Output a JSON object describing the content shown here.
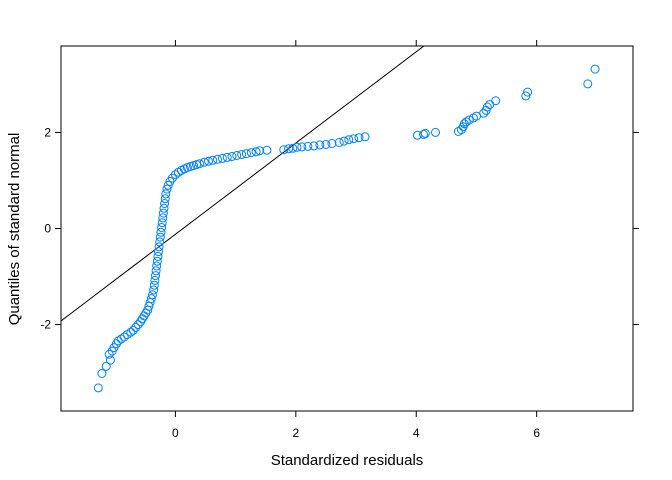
{
  "chart_data": {
    "type": "scatter",
    "title": "",
    "xlabel": "Standardized residuals",
    "ylabel": "Quantiles of standard normal",
    "xlim": [
      -1.9,
      7.6
    ],
    "ylim": [
      -3.8,
      3.8
    ],
    "x_ticks": [
      0,
      2,
      4,
      6
    ],
    "y_ticks": [
      -2,
      0,
      2
    ],
    "grid": false,
    "marker_color": "#0080ff",
    "line_color": "#000000",
    "reference_line": {
      "intercept": -0.12,
      "slope": 0.95
    },
    "series": [
      {
        "points": [
          [
            -1.28,
            -3.32
          ],
          [
            -1.22,
            -3.02
          ],
          [
            -1.15,
            -2.87
          ],
          [
            -1.08,
            -2.74
          ],
          [
            -1.1,
            -2.62
          ],
          [
            -1.05,
            -2.55
          ],
          [
            -1.02,
            -2.48
          ],
          [
            -0.98,
            -2.4
          ],
          [
            -0.95,
            -2.34
          ],
          [
            -0.9,
            -2.3
          ],
          [
            -0.85,
            -2.26
          ],
          [
            -0.8,
            -2.21
          ],
          [
            -0.74,
            -2.16
          ],
          [
            -0.7,
            -2.12
          ],
          [
            -0.66,
            -2.06
          ],
          [
            -0.62,
            -2.0
          ],
          [
            -0.58,
            -1.94
          ],
          [
            -0.55,
            -1.88
          ],
          [
            -0.52,
            -1.82
          ],
          [
            -0.49,
            -1.76
          ],
          [
            -0.46,
            -1.7
          ],
          [
            -0.44,
            -1.62
          ],
          [
            -0.42,
            -1.54
          ],
          [
            -0.4,
            -1.46
          ],
          [
            -0.38,
            -1.38
          ],
          [
            -0.36,
            -1.28
          ],
          [
            -0.35,
            -1.18
          ],
          [
            -0.34,
            -1.08
          ],
          [
            -0.33,
            -0.98
          ],
          [
            -0.32,
            -0.88
          ],
          [
            -0.31,
            -0.78
          ],
          [
            -0.3,
            -0.68
          ],
          [
            -0.29,
            -0.58
          ],
          [
            -0.28,
            -0.48
          ],
          [
            -0.27,
            -0.38
          ],
          [
            -0.26,
            -0.28
          ],
          [
            -0.25,
            -0.18
          ],
          [
            -0.24,
            -0.08
          ],
          [
            -0.23,
            0.02
          ],
          [
            -0.22,
            0.12
          ],
          [
            -0.21,
            0.22
          ],
          [
            -0.2,
            0.32
          ],
          [
            -0.19,
            0.42
          ],
          [
            -0.18,
            0.52
          ],
          [
            -0.17,
            0.62
          ],
          [
            -0.16,
            0.72
          ],
          [
            -0.14,
            0.82
          ],
          [
            -0.12,
            0.9
          ],
          [
            -0.09,
            0.98
          ],
          [
            -0.05,
            1.05
          ],
          [
            0.0,
            1.12
          ],
          [
            0.05,
            1.17
          ],
          [
            0.1,
            1.21
          ],
          [
            0.15,
            1.24
          ],
          [
            0.2,
            1.27
          ],
          [
            0.25,
            1.29
          ],
          [
            0.3,
            1.31
          ],
          [
            0.35,
            1.33
          ],
          [
            0.4,
            1.35
          ],
          [
            0.48,
            1.38
          ],
          [
            0.55,
            1.4
          ],
          [
            0.62,
            1.42
          ],
          [
            0.7,
            1.44
          ],
          [
            0.78,
            1.46
          ],
          [
            0.86,
            1.48
          ],
          [
            0.94,
            1.5
          ],
          [
            1.02,
            1.52
          ],
          [
            1.1,
            1.54
          ],
          [
            1.18,
            1.56
          ],
          [
            1.26,
            1.58
          ],
          [
            1.34,
            1.6
          ],
          [
            1.4,
            1.62
          ],
          [
            1.52,
            1.63
          ],
          [
            1.8,
            1.64
          ],
          [
            1.88,
            1.66
          ],
          [
            1.95,
            1.67
          ],
          [
            2.02,
            1.69
          ],
          [
            2.1,
            1.7
          ],
          [
            2.2,
            1.71
          ],
          [
            2.3,
            1.72
          ],
          [
            2.4,
            1.74
          ],
          [
            2.5,
            1.75
          ],
          [
            2.6,
            1.77
          ],
          [
            2.72,
            1.79
          ],
          [
            2.8,
            1.82
          ],
          [
            2.88,
            1.85
          ],
          [
            2.96,
            1.87
          ],
          [
            3.05,
            1.89
          ],
          [
            3.15,
            1.91
          ],
          [
            4.02,
            1.94
          ],
          [
            4.12,
            1.96
          ],
          [
            4.15,
            1.98
          ],
          [
            4.32,
            2.0
          ],
          [
            4.7,
            2.02
          ],
          [
            4.75,
            2.06
          ],
          [
            4.78,
            2.12
          ],
          [
            4.8,
            2.18
          ],
          [
            4.83,
            2.22
          ],
          [
            4.88,
            2.26
          ],
          [
            4.95,
            2.3
          ],
          [
            5.0,
            2.34
          ],
          [
            5.12,
            2.4
          ],
          [
            5.16,
            2.46
          ],
          [
            5.18,
            2.53
          ],
          [
            5.22,
            2.58
          ],
          [
            5.32,
            2.66
          ],
          [
            5.82,
            2.76
          ],
          [
            5.85,
            2.84
          ],
          [
            6.85,
            3.01
          ],
          [
            6.97,
            3.32
          ]
        ]
      }
    ]
  }
}
